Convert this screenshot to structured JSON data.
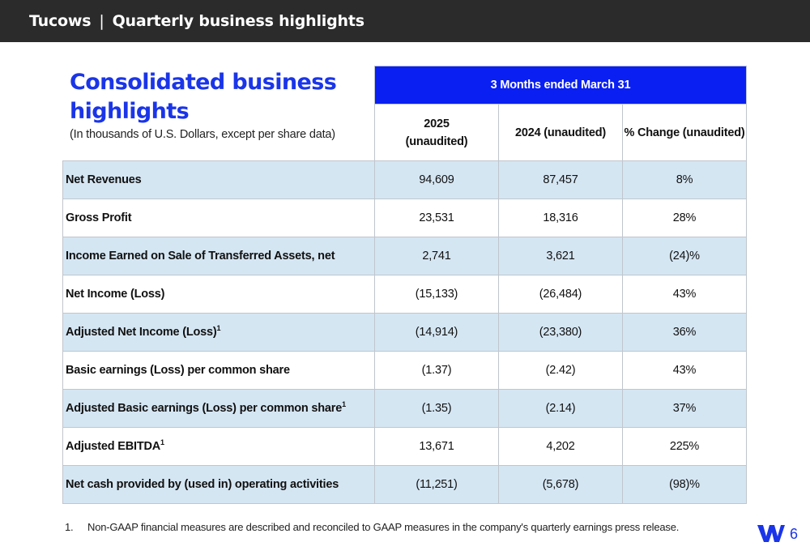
{
  "header": {
    "brand": "Tucows",
    "separator": "|",
    "title": "Quarterly business highlights"
  },
  "heading": {
    "title": "Consolidated business highlights",
    "subtitle": "(In thousands of U.S. Dollars, except per share data)"
  },
  "table": {
    "period_header": "3 Months ended March 31",
    "columns": [
      {
        "line1": "2025",
        "line2": "(unaudited)"
      },
      {
        "line1": "2024 (unaudited)",
        "line2": ""
      },
      {
        "line1": "% Change (unaudited)",
        "line2": ""
      }
    ],
    "rows": [
      {
        "label": "Net Revenues",
        "sup": "",
        "v2025": "94,609",
        "v2024": "87,457",
        "change": "8%"
      },
      {
        "label": "Gross Profit",
        "sup": "",
        "v2025": "23,531",
        "v2024": "18,316",
        "change": "28%"
      },
      {
        "label": "Income Earned on Sale of Transferred Assets, net",
        "sup": "",
        "v2025": "2,741",
        "v2024": "3,621",
        "change": "(24)%"
      },
      {
        "label": "Net Income (Loss)",
        "sup": "",
        "v2025": "(15,133)",
        "v2024": "(26,484)",
        "change": "43%"
      },
      {
        "label": "Adjusted Net Income (Loss)",
        "sup": "1",
        "v2025": "(14,914)",
        "v2024": "(23,380)",
        "change": "36%"
      },
      {
        "label": "Basic earnings (Loss) per common share",
        "sup": "",
        "v2025": "(1.37)",
        "v2024": "(2.42)",
        "change": "43%"
      },
      {
        "label": "Adjusted Basic earnings (Loss) per common share",
        "sup": "1",
        "v2025": "(1.35)",
        "v2024": "(2.14)",
        "change": "37%"
      },
      {
        "label": "Adjusted EBITDA",
        "sup": "1",
        "v2025": "13,671",
        "v2024": "4,202",
        "change": "225%"
      },
      {
        "label": "Net cash provided by (used in) operating activities",
        "sup": "",
        "v2025": "(11,251)",
        "v2024": "(5,678)",
        "change": "(98)%"
      }
    ]
  },
  "footnote": {
    "number": "1.",
    "text": "Non-GAAP financial measures are described and reconciled to GAAP measures in the company's quarterly earnings press release."
  },
  "footer": {
    "logo_icon": "tucows-logo-icon",
    "page_number": "6"
  },
  "colors": {
    "accent": "#1a35e8",
    "header_fill": "#0a1ff2",
    "row_shade": "#d5e6f3",
    "topbar": "#2b2b2b"
  }
}
